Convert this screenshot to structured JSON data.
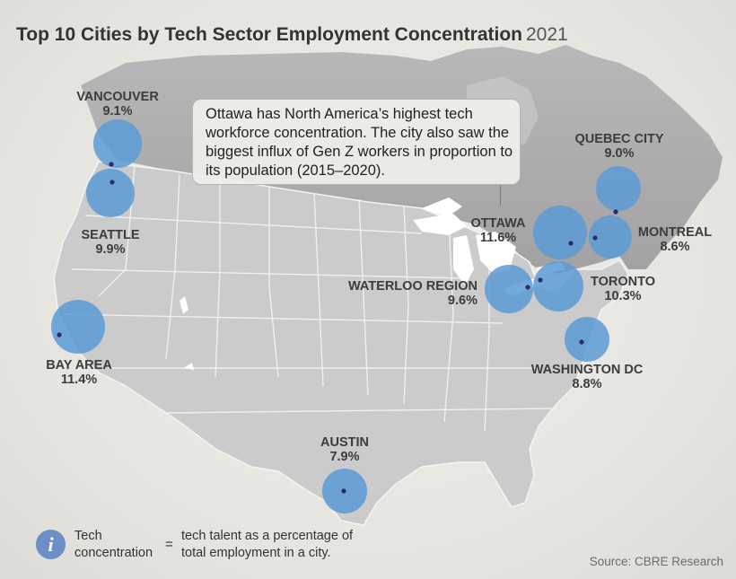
{
  "title": {
    "main": "Top 10 Cities by Tech Sector Employment Concentration",
    "year": "2021"
  },
  "callout": {
    "text": "Ottawa has North America’s highest tech workforce concentration. The city also saw the biggest influx of Gen Z workers in proportion to its population (2015–2020)."
  },
  "colors": {
    "bubble": "#5b9bd5",
    "marker": "#2b2a6e",
    "land": "#c9c9c9",
    "canada": "#a9a9a9"
  },
  "cities": [
    {
      "name": "VANCOUVER",
      "value": "9.1%"
    },
    {
      "name": "SEATTLE",
      "value": "9.9%"
    },
    {
      "name": "BAY AREA",
      "value": "11.4%"
    },
    {
      "name": "AUSTIN",
      "value": "7.9%"
    },
    {
      "name": "QUEBEC CITY",
      "value": "9.0%"
    },
    {
      "name": "OTTAWA",
      "value": "11.6%"
    },
    {
      "name": "MONTREAL",
      "value": "8.6%"
    },
    {
      "name": "WATERLOO REGION",
      "value": "9.6%"
    },
    {
      "name": "TORONTO",
      "value": "10.3%"
    },
    {
      "name": "WASHINGTON DC",
      "value": "8.8%"
    }
  ],
  "legend": {
    "icon": "info-icon",
    "term": "Tech concentration",
    "equals": "=",
    "definition": "tech talent as a percentage of total employment in a city."
  },
  "source": "Source: CBRE Research"
}
